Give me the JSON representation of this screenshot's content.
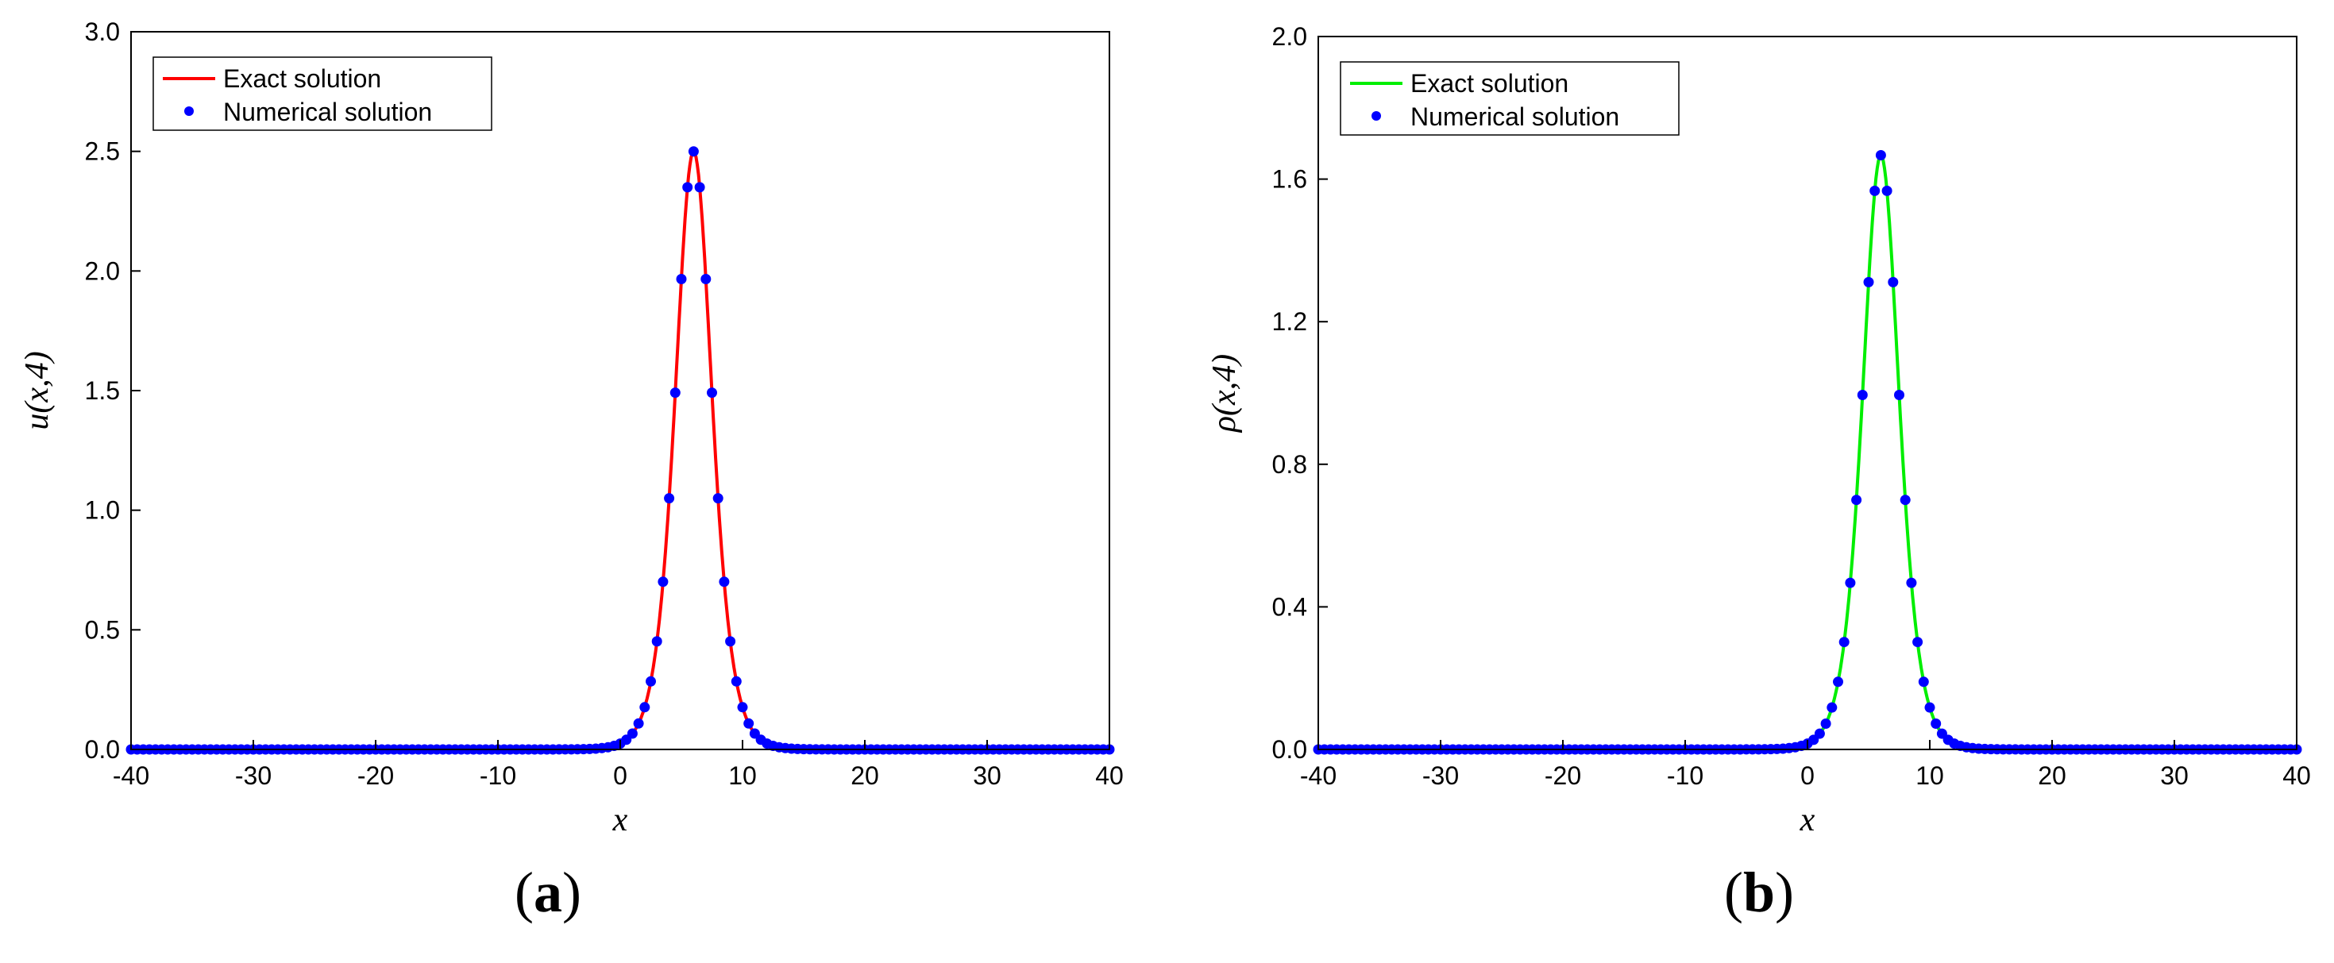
{
  "chart_data": [
    {
      "type": "line",
      "panel_label_prefix": "(",
      "panel_label_letter": "a",
      "panel_label_suffix": ")",
      "xlabel": "x",
      "ylabel": "u(x,4)",
      "xlim": [
        -40,
        40
      ],
      "ylim": [
        0,
        3
      ],
      "xticks": [
        "-40",
        "-30",
        "-20",
        "-10",
        "0",
        "10",
        "20",
        "30",
        "40"
      ],
      "yticks": [
        "0.0",
        "0.5",
        "1.0",
        "1.5",
        "2.0",
        "2.5",
        "3.0"
      ],
      "grid": false,
      "legend_position": "top-left",
      "series": [
        {
          "name": "Exact solution",
          "kind": "line",
          "color": "#ff0000"
        },
        {
          "name": "Numerical solution",
          "kind": "markers",
          "color": "#0000ff"
        }
      ],
      "curve": {
        "form": "sech^2",
        "peak_x": 6,
        "peak_y": 2.5,
        "width": 2,
        "x_start": -40,
        "x_end": 40,
        "marker_step": 0.5
      }
    },
    {
      "type": "line",
      "panel_label_prefix": "(",
      "panel_label_letter": "b",
      "panel_label_suffix": ")",
      "xlabel": "x",
      "ylabel": "ρ(x,4)",
      "xlim": [
        -40,
        40
      ],
      "ylim": [
        0,
        2
      ],
      "xticks": [
        "-40",
        "-30",
        "-20",
        "-10",
        "0",
        "10",
        "20",
        "30",
        "40"
      ],
      "yticks": [
        "0.0",
        "0.4",
        "0.8",
        "1.2",
        "1.6",
        "2.0"
      ],
      "grid": false,
      "legend_position": "top-left",
      "series": [
        {
          "name": "Exact solution",
          "kind": "line",
          "color": "#00ee00"
        },
        {
          "name": "Numerical solution",
          "kind": "markers",
          "color": "#0000ff"
        }
      ],
      "curve": {
        "form": "sech^2",
        "peak_x": 6,
        "peak_y": 1.667,
        "width": 2,
        "x_start": -40,
        "x_end": 40,
        "marker_step": 0.5
      }
    }
  ]
}
